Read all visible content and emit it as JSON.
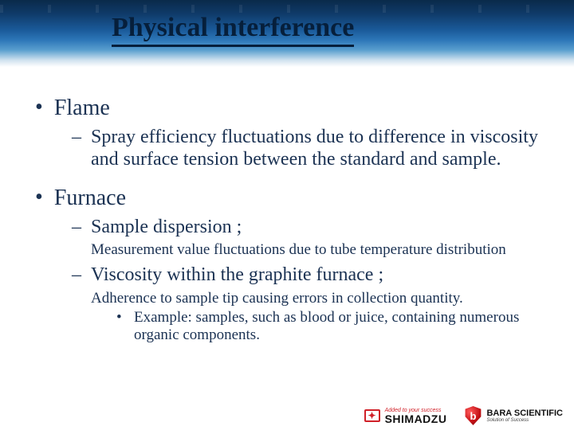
{
  "colors": {
    "text": "#1b3253",
    "title_underline": "#061f3b",
    "brand_red": "#d02028",
    "background": "#ffffff"
  },
  "title": "Physical interference",
  "items": [
    {
      "label": "Flame",
      "sub": [
        {
          "label": "Spray efficiency fluctuations due to difference in viscosity and surface tension between the standard and sample."
        }
      ]
    },
    {
      "label": "Furnace",
      "sub": [
        {
          "label": "Sample dispersion ;",
          "detail": "Measurement value fluctuations due to tube temperature distribution"
        },
        {
          "label": "Viscosity within the graphite furnace ;",
          "detail": "Adherence to sample tip causing errors in collection quantity.",
          "example": "Example: samples, such as blood or juice, containing numerous organic components."
        }
      ]
    }
  ],
  "footer": {
    "left_tagline": "Added to your success",
    "left_brand": "SHIMADZU",
    "right_brand": "BARA SCIENTIFIC",
    "right_tagline": "Solution of Success"
  }
}
